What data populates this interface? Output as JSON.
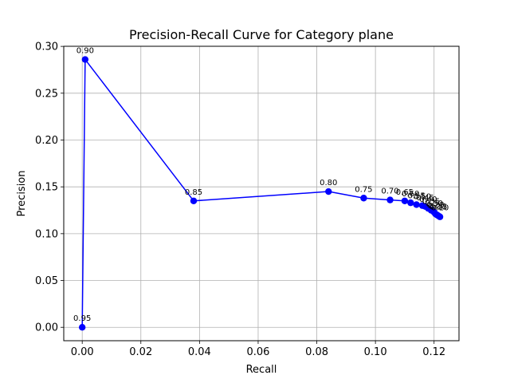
{
  "chart_data": {
    "type": "line",
    "title": "Precision-Recall Curve for Category plane",
    "xlabel": "Recall",
    "ylabel": "Precision",
    "xlim": [
      -0.0063,
      0.1285
    ],
    "ylim": [
      -0.0143,
      0.3001
    ],
    "xticks": [
      0.0,
      0.02,
      0.04,
      0.06,
      0.08,
      0.1,
      0.12
    ],
    "xtick_labels": [
      "0.00",
      "0.02",
      "0.04",
      "0.06",
      "0.08",
      "0.10",
      "0.12"
    ],
    "yticks": [
      0.0,
      0.05,
      0.1,
      0.15,
      0.2,
      0.25,
      0.3
    ],
    "ytick_labels": [
      "0.00",
      "0.05",
      "0.10",
      "0.15",
      "0.20",
      "0.25",
      "0.30"
    ],
    "grid": true,
    "color": "#0000ff",
    "marker": "circle",
    "series": [
      {
        "points": [
          {
            "x": 0.0,
            "y": 0.0,
            "label": "0.95"
          },
          {
            "x": 0.001,
            "y": 0.286,
            "label": "0.90"
          },
          {
            "x": 0.038,
            "y": 0.135,
            "label": "0.85"
          },
          {
            "x": 0.084,
            "y": 0.145,
            "label": "0.80"
          },
          {
            "x": 0.096,
            "y": 0.138,
            "label": "0.75"
          },
          {
            "x": 0.105,
            "y": 0.136,
            "label": "0.70"
          },
          {
            "x": 0.11,
            "y": 0.135,
            "label": "0.65"
          },
          {
            "x": 0.112,
            "y": 0.133,
            "label": "0.60"
          },
          {
            "x": 0.114,
            "y": 0.131,
            "label": "0.55"
          },
          {
            "x": 0.116,
            "y": 0.13,
            "label": "0.50"
          },
          {
            "x": 0.117,
            "y": 0.129,
            "label": "0.45"
          },
          {
            "x": 0.118,
            "y": 0.127,
            "label": "0.40"
          },
          {
            "x": 0.119,
            "y": 0.125,
            "label": "0.35"
          },
          {
            "x": 0.12,
            "y": 0.123,
            "label": "0.30"
          },
          {
            "x": 0.1205,
            "y": 0.121,
            "label": "0.25"
          },
          {
            "x": 0.121,
            "y": 0.12,
            "label": "0.20"
          },
          {
            "x": 0.1215,
            "y": 0.119,
            "label": "0.15"
          },
          {
            "x": 0.122,
            "y": 0.118,
            "label": "0.10"
          }
        ]
      }
    ]
  }
}
